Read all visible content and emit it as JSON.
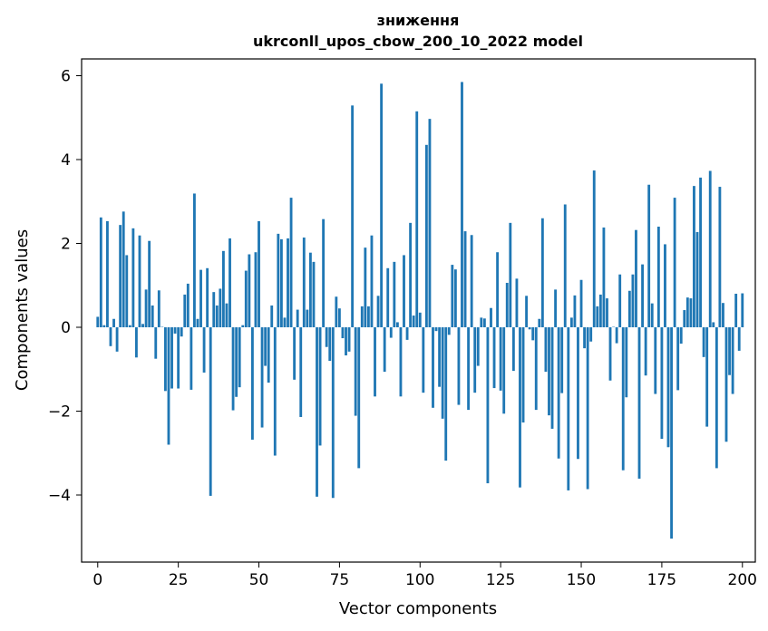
{
  "chart_data": {
    "type": "bar",
    "title": "зниження",
    "subtitle": "ukrconll_upos_cbow_200_10_2022 model",
    "xlabel": "Vector components",
    "ylabel": "Components values",
    "xlim": [
      -5,
      204
    ],
    "ylim": [
      -5.6,
      6.4
    ],
    "xticks": [
      0,
      25,
      50,
      75,
      100,
      125,
      150,
      175,
      200
    ],
    "yticks": [
      6,
      4,
      2,
      0,
      -2,
      -4
    ],
    "ytick_labels": [
      "6",
      "4",
      "2",
      "0",
      "−2",
      "−4"
    ],
    "bar_color": "#1f77b4",
    "grid": false,
    "values": [
      0.25,
      2.62,
      0.05,
      2.53,
      -0.45,
      0.2,
      -0.58,
      2.44,
      2.76,
      1.72,
      0.05,
      2.36,
      -0.72,
      2.19,
      0.08,
      0.9,
      2.06,
      0.52,
      -0.75,
      0.88,
      0.01,
      -1.52,
      -2.8,
      -1.46,
      -0.15,
      -1.46,
      -0.22,
      0.78,
      1.04,
      -1.49,
      3.19,
      0.2,
      1.37,
      -1.08,
      1.41,
      -4.02,
      0.84,
      0.52,
      0.92,
      1.82,
      0.57,
      2.12,
      -1.98,
      -1.66,
      -1.43,
      0.05,
      1.35,
      1.74,
      -2.68,
      1.79,
      2.53,
      -2.39,
      -0.92,
      -1.32,
      0.52,
      -3.06,
      2.23,
      2.1,
      0.23,
      2.12,
      3.09,
      -1.25,
      0.42,
      -2.14,
      2.14,
      0.42,
      1.78,
      1.56,
      -4.04,
      -2.82,
      2.58,
      -0.47,
      -0.8,
      -4.07,
      0.73,
      0.45,
      -0.26,
      -0.67,
      -0.58,
      5.29,
      -2.11,
      -3.36,
      0.5,
      1.9,
      0.5,
      2.19,
      -1.65,
      0.75,
      5.81,
      -1.06,
      1.41,
      -0.25,
      1.56,
      0.12,
      -1.65,
      1.72,
      -0.3,
      2.49,
      0.28,
      5.15,
      0.35,
      -1.56,
      4.35,
      4.97,
      -1.92,
      -0.09,
      -1.42,
      -2.18,
      -3.18,
      -0.18,
      1.49,
      1.38,
      -1.85,
      5.85,
      2.29,
      -1.97,
      2.2,
      -1.56,
      -0.92,
      0.23,
      0.21,
      -3.72,
      0.46,
      -1.45,
      1.79,
      -1.51,
      -2.06,
      1.06,
      2.49,
      -1.04,
      1.16,
      -3.82,
      -2.27,
      0.75,
      -0.05,
      -0.31,
      -1.97,
      0.2,
      2.6,
      -1.06,
      -2.1,
      -2.42,
      0.9,
      -3.13,
      -1.57,
      2.93,
      -3.89,
      0.23,
      0.76,
      -3.14,
      1.13,
      -0.5,
      -3.86,
      -0.34,
      3.74,
      0.5,
      0.78,
      2.38,
      0.69,
      -1.27,
      0.01,
      -0.38,
      1.26,
      -3.41,
      -1.67,
      0.87,
      1.26,
      2.32,
      -3.61,
      1.5,
      -1.15,
      3.4,
      0.57,
      -1.59,
      2.4,
      -2.66,
      1.98,
      -2.86,
      -5.04,
      3.09,
      -1.5,
      -0.39,
      0.41,
      0.71,
      0.69,
      3.37,
      2.27,
      3.57,
      -0.71,
      -2.37,
      3.73,
      0.12,
      -3.36,
      3.35,
      0.58,
      -2.73,
      -1.14,
      -1.59,
      0.8,
      -0.56,
      0.81
    ]
  }
}
